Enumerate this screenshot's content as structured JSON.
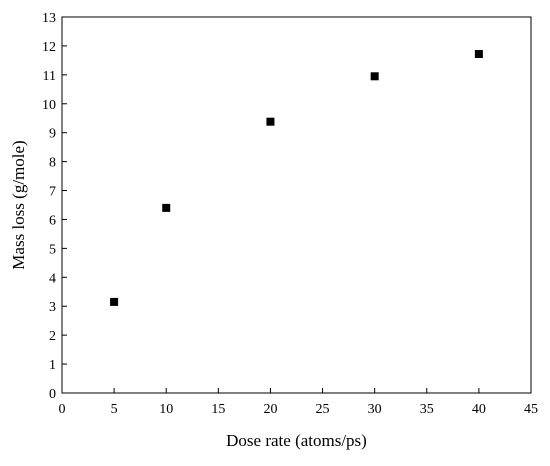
{
  "chart_data": {
    "type": "scatter",
    "title": "",
    "xlabel": "Dose rate (atoms/ps)",
    "ylabel": "Mass loss (g/mole)",
    "xlim": [
      0,
      45
    ],
    "ylim": [
      0,
      13
    ],
    "xticks": [
      "0",
      "5",
      "10",
      "15",
      "20",
      "25",
      "30",
      "35",
      "40",
      "45"
    ],
    "yticks": [
      "0",
      "1",
      "2",
      "3",
      "4",
      "5",
      "6",
      "7",
      "8",
      "9",
      "10",
      "11",
      "12",
      "13"
    ],
    "grid": false,
    "legend": "none",
    "marker": "square",
    "marker_color": "#000000",
    "series": [
      {
        "x": [
          5,
          10,
          20,
          30,
          40
        ],
        "y": [
          3.15,
          6.4,
          9.38,
          10.95,
          11.72
        ]
      }
    ]
  }
}
